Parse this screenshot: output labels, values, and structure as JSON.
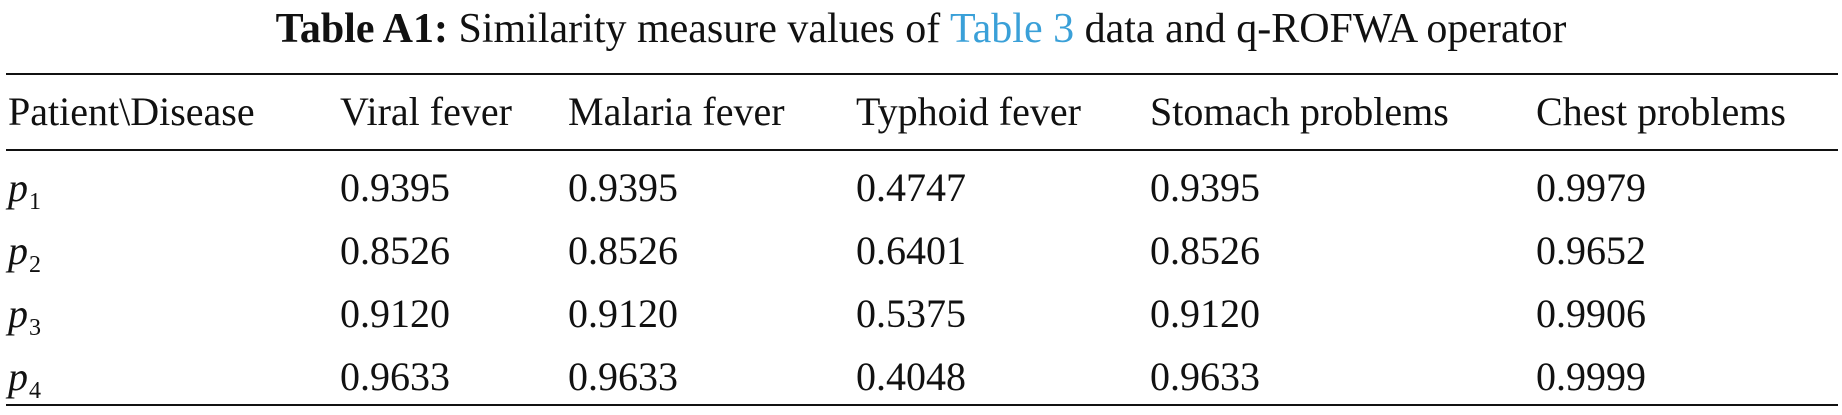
{
  "caption": {
    "label": "Table A1:",
    "text_before_link": " Similarity measure values of ",
    "link": "Table 3",
    "text_after_link": " data and q-ROFWA operator"
  },
  "table": {
    "headers": [
      "Patient\\Disease",
      "Viral fever",
      "Malaria fever",
      "Typhoid fever",
      "Stomach problems",
      "Chest problems"
    ],
    "rows": [
      {
        "patient": "p",
        "sub": "1",
        "values": [
          "0.9395",
          "0.9395",
          "0.4747",
          "0.9395",
          "0.9979"
        ]
      },
      {
        "patient": "p",
        "sub": "2",
        "values": [
          "0.8526",
          "0.8526",
          "0.6401",
          "0.8526",
          "0.9652"
        ]
      },
      {
        "patient": "p",
        "sub": "3",
        "values": [
          "0.9120",
          "0.9120",
          "0.5375",
          "0.9120",
          "0.9906"
        ]
      },
      {
        "patient": "p",
        "sub": "4",
        "values": [
          "0.9633",
          "0.9633",
          "0.4048",
          "0.9633",
          "0.9999"
        ]
      }
    ]
  }
}
